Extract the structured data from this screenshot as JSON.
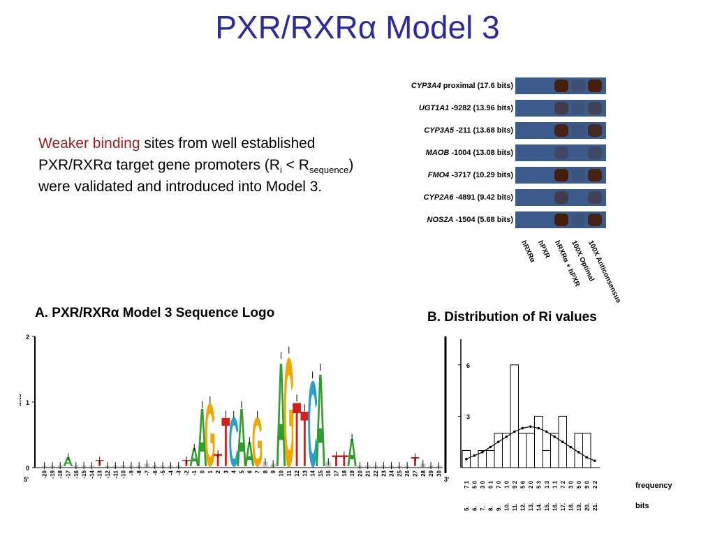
{
  "slide": {
    "title": "PXR/RXRα Model 3"
  },
  "body": {
    "highlight": "Weaker binding",
    "text1": " sites from well established PXR/RXRα target gene promoters (R",
    "sub_i": "i",
    "text2": " < R",
    "sub_seq": "sequence",
    "text3": ") were validated and introduced into Model 3."
  },
  "gel": {
    "rows": [
      {
        "gene": "CYP3A4",
        "desc": "proximal (17.6 bits)"
      },
      {
        "gene": "UGT1A1",
        "desc": "-9282 (13.96 bits)"
      },
      {
        "gene": "CYP3A5",
        "desc": "-211 (13.68 bits)"
      },
      {
        "gene": "MAOB",
        "desc": "-1004 (13.08 bits)"
      },
      {
        "gene": "FMO4",
        "desc": "-3717 (10.29 bits)"
      },
      {
        "gene": "CYP2A6",
        "desc": "-4891 (9.42 bits)"
      },
      {
        "gene": "NOS2A",
        "desc": "-1504 (5.68 bits)"
      }
    ],
    "band_intensity": [
      [
        0,
        0,
        1.0,
        0.2,
        1.0
      ],
      [
        0,
        0,
        0.5,
        0.1,
        0.4
      ],
      [
        0,
        0,
        0.9,
        0.1,
        0.8
      ],
      [
        0,
        0,
        0.3,
        0.0,
        0.3
      ],
      [
        0,
        0,
        1.0,
        0.1,
        0.9
      ],
      [
        0,
        0,
        0.5,
        0.0,
        0.4
      ],
      [
        0,
        0,
        1.0,
        0.1,
        0.9
      ]
    ],
    "lanes": [
      "hRXRα",
      "hPXR",
      "hRXRα + hPXR",
      "100X Optimal",
      "100X Anticonsensus"
    ]
  },
  "logo": {
    "title": "A. PXR/RXRα Model 3 Sequence Logo",
    "ylabel": "bits",
    "yticks": [
      "2",
      "1",
      "0"
    ],
    "end5": "5'",
    "end3": "3'",
    "positions": [
      "-20",
      "-19",
      "-18",
      "-17",
      "-16",
      "-15",
      "-14",
      "-13",
      "-12",
      "-11",
      "-10",
      "-9",
      "-8",
      "-7",
      "-6",
      "-5",
      "-4",
      "-3",
      "-2",
      "-1",
      "0",
      "1",
      "2",
      "3",
      "4",
      "5",
      "6",
      "7",
      "8",
      "9",
      "10",
      "11",
      "12",
      "13",
      "14",
      "15",
      "16",
      "17",
      "18",
      "19",
      "20",
      "21",
      "22",
      "23",
      "24",
      "25",
      "26",
      "27",
      "28",
      "29",
      "30"
    ],
    "heights": [
      0.02,
      0.02,
      0.02,
      0.15,
      0.02,
      0.02,
      0.02,
      0.1,
      0.02,
      0.02,
      0.03,
      0.02,
      0.02,
      0.05,
      0.02,
      0.02,
      0.02,
      0.02,
      0.1,
      0.3,
      0.95,
      1.02,
      0.2,
      0.8,
      0.8,
      0.95,
      0.4,
      0.8,
      0.08,
      0.05,
      1.7,
      1.78,
      1.05,
      0.9,
      1.4,
      1.52,
      0.08,
      0.18,
      0.18,
      0.45,
      0.02,
      0.02,
      0.02,
      0.02,
      0.02,
      0.02,
      0.02,
      0.15,
      0.05,
      0.02,
      0.02
    ],
    "letters": [
      "",
      "",
      "",
      "A",
      "",
      "",
      "",
      "T",
      "",
      "",
      "",
      "",
      "",
      "",
      "",
      "",
      "",
      "",
      "T",
      "A",
      "A",
      "G",
      "T",
      "T",
      "C",
      "A",
      "A",
      "G",
      "",
      "",
      "A",
      "G",
      "T",
      "T",
      "C",
      "A",
      "",
      "T",
      "T",
      "A",
      "",
      "",
      "",
      "",
      "",
      "",
      "",
      "T",
      "",
      "",
      ""
    ]
  },
  "chart_data": {
    "type": "bar",
    "title": "B. Distribution of Ri values",
    "xlabel": "bits",
    "ylabel": "frequency",
    "yticks": [
      3,
      6
    ],
    "ylim": [
      0,
      7.5
    ],
    "bits": [
      "5.",
      "6.",
      "7.",
      "8.",
      "9.",
      "10.",
      "11.",
      "12.",
      "13.",
      "14.",
      "15.",
      "16.",
      "17.",
      "18.",
      "19.",
      "20.",
      "21."
    ],
    "frequency": [
      1,
      0,
      1,
      1,
      2,
      2,
      6,
      2,
      2,
      3,
      1,
      2,
      3,
      0,
      2,
      2,
      0
    ],
    "freq_labels": [
      "7",
      "5",
      "3",
      "0",
      "7",
      "1",
      "9",
      "5",
      "2",
      "5",
      "1",
      "1",
      "7",
      "3",
      "5",
      "9",
      "2"
    ],
    "freq_labels2": [
      "1",
      "0",
      "0",
      "1",
      "0",
      "0",
      "2",
      "6",
      "0",
      "3",
      "3",
      "1",
      "2",
      "0",
      "0",
      "0",
      "2"
    ],
    "fit_curve": "normal",
    "fit_points": [
      0.5,
      0.7,
      0.9,
      1.2,
      1.5,
      1.8,
      2.1,
      2.3,
      2.4,
      2.3,
      2.1,
      1.8,
      1.5,
      1.2,
      0.9,
      0.6,
      0.4
    ]
  }
}
